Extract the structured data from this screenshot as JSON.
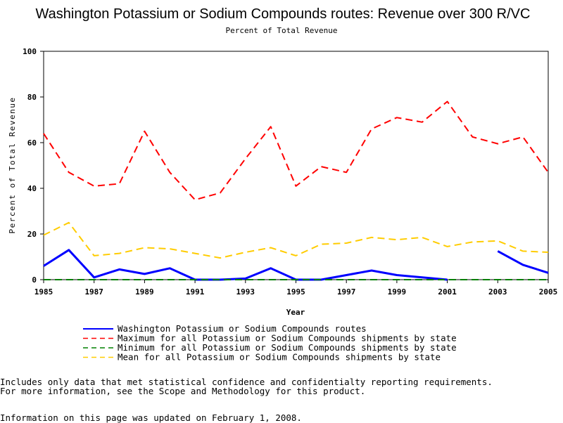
{
  "chart_data": {
    "type": "line",
    "title": "Washington Potassium or Sodium Compounds routes: Revenue over 300 R/VC",
    "subtitle": "Percent of Total Revenue",
    "xlabel": "Year",
    "ylabel": "Percent of Total Revenue",
    "xlim": [
      1985,
      2005
    ],
    "ylim": [
      0,
      100
    ],
    "xticks": [
      1985,
      1987,
      1989,
      1991,
      1993,
      1995,
      1997,
      1999,
      2001,
      2003,
      2005
    ],
    "yticks": [
      0,
      20,
      40,
      60,
      80,
      100
    ],
    "grid": false,
    "legend_position": "bottom",
    "series": [
      {
        "name": "Washington Potassium or Sodium Compounds routes",
        "color": "#0000ff",
        "style": "solid",
        "points": [
          [
            1985,
            6
          ],
          [
            1986,
            13
          ],
          [
            1987,
            1
          ],
          [
            1988,
            4.5
          ],
          [
            1989,
            2.5
          ],
          [
            1990,
            5
          ],
          [
            1991,
            0
          ],
          [
            1992,
            0
          ],
          [
            1993,
            0.5
          ],
          [
            1994,
            5
          ],
          [
            1995,
            0
          ],
          [
            1996,
            0
          ],
          [
            1997,
            2
          ],
          [
            1998,
            4
          ],
          [
            1999,
            2
          ],
          [
            2000,
            1
          ],
          [
            2001,
            0
          ],
          [
            2003,
            12.5
          ],
          [
            2004,
            6.5
          ],
          [
            2005,
            3
          ]
        ]
      },
      {
        "name": "Maximum for all Potassium or Sodium Compounds shipments by state",
        "color": "#ff0000",
        "style": "dashed",
        "points": [
          [
            1985,
            64
          ],
          [
            1986,
            47
          ],
          [
            1987,
            41
          ],
          [
            1988,
            42
          ],
          [
            1989,
            65
          ],
          [
            1990,
            47
          ],
          [
            1991,
            35
          ],
          [
            1992,
            38
          ],
          [
            1993,
            53
          ],
          [
            1994,
            67
          ],
          [
            1995,
            41
          ],
          [
            1996,
            49.5
          ],
          [
            1997,
            47
          ],
          [
            1998,
            66
          ],
          [
            1999,
            71
          ],
          [
            2000,
            69
          ],
          [
            2001,
            78
          ],
          [
            2002,
            62.5
          ],
          [
            2003,
            59.5
          ],
          [
            2004,
            62.5
          ],
          [
            2005,
            47
          ]
        ]
      },
      {
        "name": "Minimum for all Potassium or Sodium Compounds shipments by state",
        "color": "#008000",
        "style": "dashed",
        "points": [
          [
            1985,
            0
          ],
          [
            1986,
            0
          ],
          [
            1987,
            0
          ],
          [
            1988,
            0
          ],
          [
            1989,
            0
          ],
          [
            1990,
            0
          ],
          [
            1991,
            0
          ],
          [
            1992,
            0
          ],
          [
            1993,
            0
          ],
          [
            1994,
            0
          ],
          [
            1995,
            0
          ],
          [
            1996,
            0
          ],
          [
            1997,
            0
          ],
          [
            1998,
            0
          ],
          [
            1999,
            0
          ],
          [
            2000,
            0
          ],
          [
            2001,
            0
          ],
          [
            2002,
            0
          ],
          [
            2003,
            0
          ],
          [
            2004,
            0
          ],
          [
            2005,
            0
          ]
        ]
      },
      {
        "name": "Mean for all Potassium or Sodium Compounds shipments by state",
        "color": "#ffcc00",
        "style": "dashed",
        "points": [
          [
            1985,
            19.5
          ],
          [
            1986,
            25
          ],
          [
            1987,
            10.5
          ],
          [
            1988,
            11.5
          ],
          [
            1989,
            14
          ],
          [
            1990,
            13.5
          ],
          [
            1991,
            11.5
          ],
          [
            1992,
            9.5
          ],
          [
            1993,
            12
          ],
          [
            1994,
            14
          ],
          [
            1995,
            10.5
          ],
          [
            1996,
            15.5
          ],
          [
            1997,
            16
          ],
          [
            1998,
            18.5
          ],
          [
            1999,
            17.5
          ],
          [
            2000,
            18.5
          ],
          [
            2001,
            14.5
          ],
          [
            2002,
            16.5
          ],
          [
            2003,
            17
          ],
          [
            2004,
            12.5
          ],
          [
            2005,
            12
          ]
        ]
      }
    ]
  },
  "notes": {
    "line1": "Includes only data that met statistical confidence and confidentialty reporting requirements.",
    "line2": "For more information, see the Scope and Methodology for this product.",
    "updated": "Information on this page was updated on February 1, 2008."
  }
}
